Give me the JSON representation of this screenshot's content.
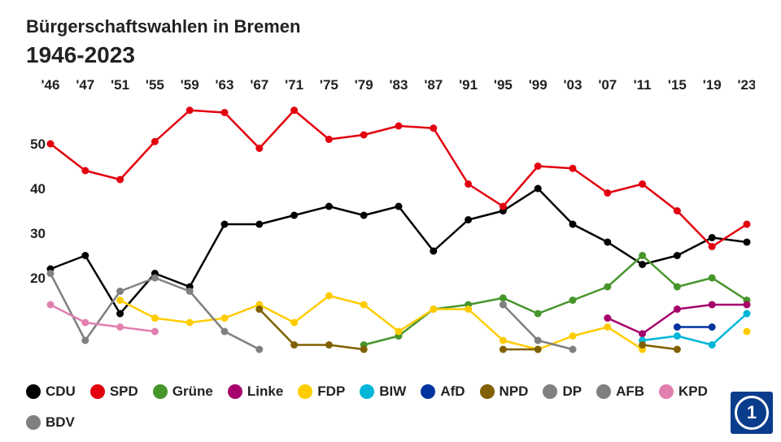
{
  "title": "Bürgerschaftswahlen in Bremen",
  "subtitle": "1946-2023",
  "chart": {
    "type": "line",
    "background_color": "#ffffff",
    "x_labels": [
      "'46",
      "'47",
      "'51",
      "'55",
      "'59",
      "'63",
      "'67",
      "'71",
      "'75",
      "'79",
      "'83",
      "'87",
      "'91",
      "'95",
      "'99",
      "'03",
      "'07",
      "'11",
      "'15",
      "'19",
      "'23"
    ],
    "y_ticks": [
      20,
      30,
      40,
      50
    ],
    "ylim": [
      0,
      60
    ],
    "marker_radius": 4.5,
    "line_width": 2.5,
    "series": [
      {
        "name": "CDU",
        "color": "#000000",
        "data": [
          22,
          25,
          12,
          21,
          18.0,
          32,
          32,
          34,
          36,
          34,
          36,
          26,
          33,
          35,
          40,
          32,
          28,
          23,
          25,
          29,
          28
        ]
      },
      {
        "name": "SPD",
        "color": "#e3000f",
        "data": [
          50,
          44,
          42,
          50.5,
          57.5,
          57,
          49,
          57.5,
          51,
          52,
          54,
          53.5,
          41,
          36,
          45,
          44.5,
          39,
          41,
          35,
          27,
          32
        ]
      },
      {
        "name": "Grüne",
        "color": "#46962b",
        "data": [
          null,
          null,
          null,
          null,
          null,
          null,
          null,
          null,
          null,
          5,
          7,
          13,
          14,
          15.5,
          12,
          15,
          18,
          25,
          18,
          20,
          15
        ]
      },
      {
        "name": "Linke",
        "color": "#a6006b",
        "data": [
          null,
          null,
          null,
          null,
          null,
          null,
          null,
          null,
          null,
          null,
          null,
          null,
          null,
          null,
          null,
          null,
          11,
          7.5,
          13,
          14,
          14
        ]
      },
      {
        "name": "FDP",
        "color": "#ffcc00",
        "data": [
          null,
          null,
          15,
          11,
          10,
          11,
          14,
          10,
          16,
          14,
          8,
          13,
          13,
          6,
          4,
          7,
          9,
          4,
          null,
          null,
          8
        ]
      },
      {
        "name": "BIW",
        "color": "#00b6d9",
        "data": [
          null,
          null,
          null,
          null,
          null,
          null,
          null,
          null,
          null,
          null,
          null,
          null,
          null,
          null,
          null,
          null,
          null,
          6,
          7,
          5,
          12
        ]
      },
      {
        "name": "AfD",
        "color": "#0033a0",
        "data": [
          null,
          null,
          null,
          null,
          null,
          null,
          null,
          null,
          null,
          null,
          null,
          null,
          null,
          null,
          null,
          null,
          null,
          null,
          9,
          9,
          null
        ]
      },
      {
        "name": "NPD",
        "color": "#806000",
        "data": [
          null,
          null,
          null,
          null,
          null,
          null,
          13,
          5,
          5,
          4,
          null,
          null,
          null,
          4,
          4,
          null,
          null,
          5,
          4,
          null,
          null
        ]
      },
      {
        "name": "DP",
        "color": "#808080",
        "data": [
          21,
          6,
          17,
          20,
          17,
          8,
          4,
          null,
          null,
          null,
          null,
          null,
          null,
          null,
          null,
          null,
          null,
          null,
          null,
          null,
          null
        ]
      },
      {
        "name": "AFB",
        "color": "#808080",
        "data": [
          null,
          null,
          null,
          null,
          null,
          null,
          null,
          null,
          null,
          null,
          null,
          null,
          null,
          14,
          6,
          4,
          null,
          null,
          null,
          null,
          null
        ]
      },
      {
        "name": "KPD",
        "color": "#e17fb1",
        "data": [
          14,
          10,
          9,
          8,
          null,
          null,
          null,
          null,
          null,
          null,
          null,
          null,
          null,
          null,
          null,
          null,
          null,
          null,
          null,
          null,
          null
        ]
      },
      {
        "name": "BDV",
        "color": "#808080",
        "data": [
          null,
          null,
          null,
          null,
          null,
          null,
          null,
          null,
          null,
          null,
          null,
          null,
          null,
          null,
          null,
          null,
          null,
          null,
          null,
          null,
          null
        ]
      }
    ]
  },
  "legend": [
    {
      "label": "CDU",
      "color": "#000000"
    },
    {
      "label": "SPD",
      "color": "#e3000f"
    },
    {
      "label": "Grüne",
      "color": "#46962b"
    },
    {
      "label": "Linke",
      "color": "#a6006b"
    },
    {
      "label": "FDP",
      "color": "#ffcc00"
    },
    {
      "label": "BIW",
      "color": "#00b6d9"
    },
    {
      "label": "AfD",
      "color": "#0033a0"
    },
    {
      "label": "NPD",
      "color": "#806000"
    },
    {
      "label": "DP",
      "color": "#808080"
    },
    {
      "label": "AFB",
      "color": "#808080"
    },
    {
      "label": "KPD",
      "color": "#e17fb1"
    },
    {
      "label": "BDV",
      "color": "#808080"
    }
  ],
  "logo_text": "1"
}
